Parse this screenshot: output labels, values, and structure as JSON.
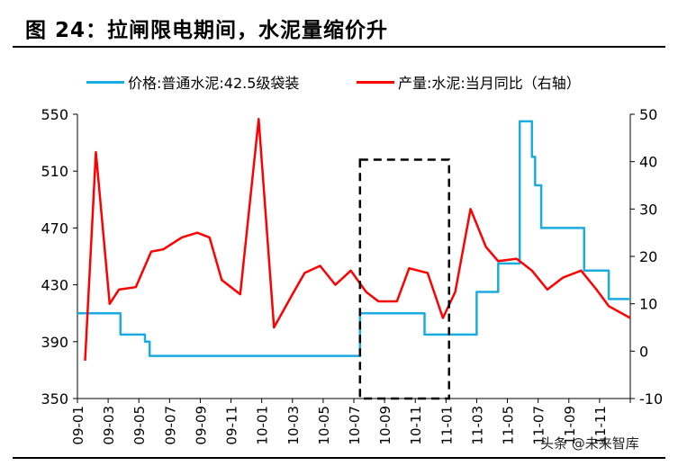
{
  "title": "图 24：拉闸限电期间，水泥量缩价升",
  "legend": {
    "price_label": "价格:普通水泥:42.5级袋装",
    "output_label": "产量:水泥:当月同比（右轴）"
  },
  "watermark": "头条 @未来智库",
  "colors": {
    "price": "#1AABE0",
    "output": "#FF0000",
    "axis": "#000000"
  },
  "chart_data": {
    "type": "line",
    "title": "图 24：拉闸限电期间，水泥量缩价升",
    "x_labels": [
      "09-01",
      "09-03",
      "09-05",
      "09-07",
      "09-09",
      "09-11",
      "10-01",
      "10-03",
      "10-05",
      "10-07",
      "10-09",
      "10-11",
      "11-01",
      "11-03",
      "11-05",
      "11-07",
      "11-09",
      "11-11"
    ],
    "y_left": {
      "range": [
        350,
        550
      ],
      "ticks": [
        350,
        390,
        430,
        470,
        510,
        550
      ]
    },
    "y_right": {
      "range": [
        -10,
        50
      ],
      "ticks": [
        -10,
        0,
        10,
        20,
        30,
        40,
        50
      ]
    },
    "grid": false,
    "legend_position": "top",
    "series": [
      {
        "name": "价格:普通水泥:42.5级袋装",
        "axis": "left",
        "step": true,
        "x": [
          0,
          1.1,
          1.4,
          2.0,
          2.2,
          2.35,
          3.0,
          4.0,
          5.0,
          6.0,
          7.0,
          8.0,
          9.1,
          9.2,
          10.0,
          11.0,
          11.3,
          12.0,
          13.0,
          13.7,
          13.8,
          14.4,
          14.6,
          14.8,
          14.9,
          15.1,
          15.6,
          16.0,
          16.5,
          17.0,
          17.3,
          18.0
        ],
        "y": [
          410,
          410,
          395,
          395,
          390,
          380,
          380,
          380,
          380,
          380,
          380,
          380,
          380,
          410,
          410,
          410,
          395,
          395,
          425,
          445,
          445,
          545,
          545,
          520,
          500,
          470,
          470,
          470,
          440,
          440,
          420,
          420
        ]
      },
      {
        "name": "产量:水泥:当月同比（右轴）",
        "axis": "right",
        "x": [
          0.25,
          0.6,
          1.05,
          1.35,
          1.9,
          2.4,
          2.8,
          3.4,
          3.9,
          4.3,
          4.7,
          5.3,
          5.9,
          6.4,
          7.0,
          7.4,
          7.9,
          8.4,
          8.9,
          9.4,
          9.8,
          10.4,
          10.8,
          11.4,
          11.9,
          12.3,
          12.8,
          13.3,
          13.7,
          14.3,
          14.8,
          15.3,
          15.8,
          16.4,
          16.9,
          17.3,
          18.0
        ],
        "y": [
          -2,
          42,
          10,
          13,
          13.5,
          21,
          21.5,
          24,
          25,
          24,
          15,
          12,
          49,
          5,
          12,
          16.5,
          18,
          14,
          17,
          12.5,
          10.5,
          10.5,
          17.5,
          16.5,
          7,
          12.5,
          30,
          22,
          19,
          19.5,
          17,
          13,
          15.5,
          17,
          13,
          9.5,
          7
        ]
      }
    ],
    "annotations": [
      {
        "type": "dashed_box",
        "x_range": [
          9.2,
          12.1
        ],
        "y_left_range": [
          350,
          518
        ]
      }
    ]
  }
}
